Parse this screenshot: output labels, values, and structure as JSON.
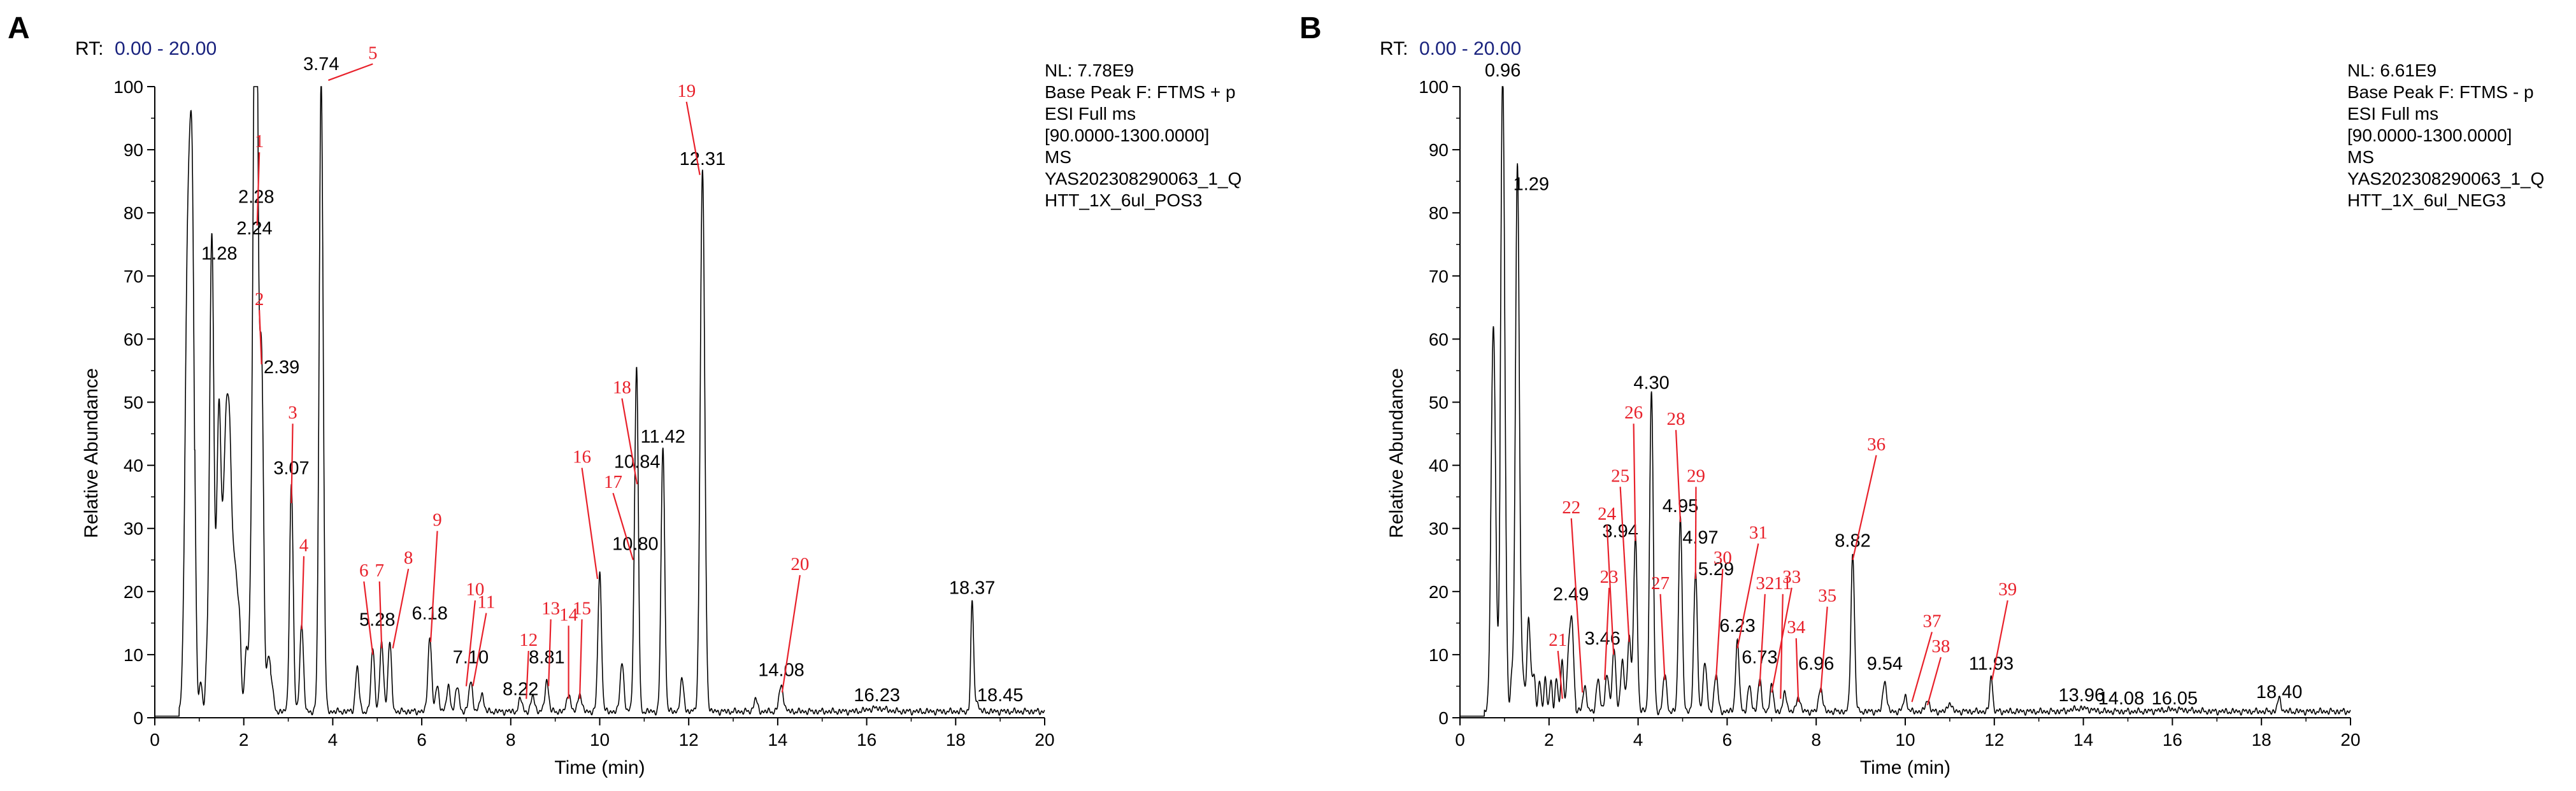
{
  "colors": {
    "trace": "#000000",
    "annot": "#e8202a",
    "rt_value": "#1a237e",
    "baseline": "#00a651"
  },
  "chart_data": [
    {
      "type": "line",
      "panel_label": "A",
      "rt_label": "RT:",
      "rt_range": "0.00 - 20.00",
      "xlabel": "Time (min)",
      "ylabel": "Relative Abundance",
      "xlim": [
        0,
        20
      ],
      "ylim": [
        0,
        100
      ],
      "xticks": [
        0,
        2,
        4,
        6,
        8,
        10,
        12,
        14,
        16,
        18,
        20
      ],
      "yticks": [
        0,
        10,
        20,
        30,
        40,
        50,
        60,
        70,
        80,
        90,
        100
      ],
      "info": [
        "NL: 7.78E9",
        "Base Peak F: FTMS + p",
        "ESI Full ms",
        "[90.0000-1300.0000]",
        "MS",
        "YAS202308290063_1_Q",
        "HTT_1X_6ul_POS3"
      ],
      "peaks": [
        {
          "rt": 0.74,
          "h": 70,
          "w": 0.06
        },
        {
          "rt": 0.84,
          "h": 72,
          "w": 0.05
        },
        {
          "rt": 1.28,
          "h": 71,
          "w": 0.05
        },
        {
          "rt": 1.45,
          "h": 46,
          "w": 0.05
        },
        {
          "rt": 1.6,
          "h": 42,
          "w": 0.05
        },
        {
          "rt": 1.7,
          "h": 33,
          "w": 0.05
        },
        {
          "rt": 1.84,
          "h": 19,
          "w": 0.06
        },
        {
          "rt": 2.1,
          "h": 8,
          "w": 0.05
        },
        {
          "rt": 2.24,
          "h": 74,
          "w": 0.05
        },
        {
          "rt": 2.28,
          "h": 77,
          "w": 0.04
        },
        {
          "rt": 2.39,
          "h": 54,
          "w": 0.05
        },
        {
          "rt": 2.6,
          "h": 6,
          "w": 0.05
        },
        {
          "rt": 3.07,
          "h": 36,
          "w": 0.04
        },
        {
          "rt": 3.3,
          "h": 14,
          "w": 0.04
        },
        {
          "rt": 3.74,
          "h": 100,
          "w": 0.045
        },
        {
          "rt": 4.55,
          "h": 7,
          "w": 0.04
        },
        {
          "rt": 4.9,
          "h": 10,
          "w": 0.04
        },
        {
          "rt": 5.1,
          "h": 11,
          "w": 0.04
        },
        {
          "rt": 5.28,
          "h": 11,
          "w": 0.04
        },
        {
          "rt": 6.18,
          "h": 12,
          "w": 0.04
        },
        {
          "rt": 6.35,
          "h": 4,
          "w": 0.04
        },
        {
          "rt": 6.6,
          "h": 4,
          "w": 0.04
        },
        {
          "rt": 6.8,
          "h": 4,
          "w": 0.04
        },
        {
          "rt": 7.1,
          "h": 5,
          "w": 0.04
        },
        {
          "rt": 7.35,
          "h": 3,
          "w": 0.04
        },
        {
          "rt": 8.22,
          "h": 2,
          "w": 0.04
        },
        {
          "rt": 8.5,
          "h": 2.5,
          "w": 0.04
        },
        {
          "rt": 8.81,
          "h": 5,
          "w": 0.04
        },
        {
          "rt": 9.3,
          "h": 3,
          "w": 0.04
        },
        {
          "rt": 9.55,
          "h": 3,
          "w": 0.04
        },
        {
          "rt": 10.0,
          "h": 22,
          "w": 0.04
        },
        {
          "rt": 10.5,
          "h": 8,
          "w": 0.04
        },
        {
          "rt": 10.8,
          "h": 25,
          "w": 0.04
        },
        {
          "rt": 10.84,
          "h": 37,
          "w": 0.035
        },
        {
          "rt": 11.42,
          "h": 42,
          "w": 0.04
        },
        {
          "rt": 11.85,
          "h": 5,
          "w": 0.04
        },
        {
          "rt": 12.31,
          "h": 86,
          "w": 0.05
        },
        {
          "rt": 13.5,
          "h": 2,
          "w": 0.04
        },
        {
          "rt": 14.08,
          "h": 4,
          "w": 0.05
        },
        {
          "rt": 16.23,
          "h": 0.5,
          "w": 0.2
        },
        {
          "rt": 18.37,
          "h": 17,
          "w": 0.03
        },
        {
          "rt": 18.45,
          "h": 2,
          "w": 0.05
        }
      ],
      "black_labels": [
        {
          "t": "3.74",
          "rt": 3.74,
          "v": 102
        },
        {
          "t": "2.28",
          "rt": 2.28,
          "v": 81
        },
        {
          "t": "2.24",
          "rt": 2.24,
          "v": 76
        },
        {
          "t": "1.28",
          "rt": 1.45,
          "v": 72
        },
        {
          "t": "2.39",
          "rt": 2.85,
          "v": 54
        },
        {
          "t": "3.07",
          "rt": 3.07,
          "v": 38
        },
        {
          "t": "5.28",
          "rt": 5.0,
          "v": 14
        },
        {
          "t": "6.18",
          "rt": 6.18,
          "v": 15
        },
        {
          "t": "7.10",
          "rt": 7.1,
          "v": 8
        },
        {
          "t": "8.22",
          "rt": 8.22,
          "v": 3
        },
        {
          "t": "8.81",
          "rt": 8.81,
          "v": 8
        },
        {
          "t": "10.84",
          "rt": 10.84,
          "v": 39
        },
        {
          "t": "11.42",
          "rt": 11.42,
          "v": 43
        },
        {
          "t": "10.80",
          "rt": 10.8,
          "v": 26
        },
        {
          "t": "12.31",
          "rt": 12.31,
          "v": 87
        },
        {
          "t": "14.08",
          "rt": 14.08,
          "v": 6
        },
        {
          "t": "16.23",
          "rt": 16.23,
          "v": 2
        },
        {
          "t": "18.37",
          "rt": 18.37,
          "v": 19
        },
        {
          "t": "18.45",
          "rt": 19.0,
          "v": 2
        }
      ],
      "red_labels": [
        {
          "t": "5",
          "tx": 4.9,
          "tv": 104,
          "rt": 3.9,
          "v": 101
        },
        {
          "t": "1",
          "tx": 2.35,
          "tv": 90,
          "rt": 2.3,
          "v": 78
        },
        {
          "t": "2",
          "tx": 2.35,
          "tv": 65,
          "rt": 2.4,
          "v": 56
        },
        {
          "t": "3",
          "tx": 3.1,
          "tv": 47,
          "rt": 3.07,
          "v": 34
        },
        {
          "t": "4",
          "tx": 3.35,
          "tv": 26,
          "rt": 3.3,
          "v": 14
        },
        {
          "t": "6",
          "tx": 4.7,
          "tv": 22,
          "rt": 4.9,
          "v": 10
        },
        {
          "t": "7",
          "tx": 5.05,
          "tv": 22,
          "rt": 5.1,
          "v": 11
        },
        {
          "t": "8",
          "tx": 5.7,
          "tv": 24,
          "rt": 5.35,
          "v": 11
        },
        {
          "t": "9",
          "tx": 6.35,
          "tv": 30,
          "rt": 6.2,
          "v": 12
        },
        {
          "t": "10",
          "tx": 7.2,
          "tv": 19,
          "rt": 7.0,
          "v": 5
        },
        {
          "t": "11",
          "tx": 7.45,
          "tv": 17,
          "rt": 7.15,
          "v": 5
        },
        {
          "t": "12",
          "tx": 8.4,
          "tv": 11,
          "rt": 8.35,
          "v": 3
        },
        {
          "t": "13",
          "tx": 8.9,
          "tv": 16,
          "rt": 8.85,
          "v": 5
        },
        {
          "t": "14",
          "tx": 9.3,
          "tv": 15,
          "rt": 9.3,
          "v": 3
        },
        {
          "t": "15",
          "tx": 9.6,
          "tv": 16,
          "rt": 9.55,
          "v": 3
        },
        {
          "t": "16",
          "tx": 9.6,
          "tv": 40,
          "rt": 9.95,
          "v": 22
        },
        {
          "t": "17",
          "tx": 10.3,
          "tv": 36,
          "rt": 10.75,
          "v": 25
        },
        {
          "t": "18",
          "tx": 10.5,
          "tv": 51,
          "rt": 10.84,
          "v": 37
        },
        {
          "t": "19",
          "tx": 11.95,
          "tv": 98,
          "rt": 12.25,
          "v": 86
        },
        {
          "t": "20",
          "tx": 14.5,
          "tv": 23,
          "rt": 14.1,
          "v": 4
        }
      ]
    },
    {
      "type": "line",
      "panel_label": "B",
      "rt_label": "RT:",
      "rt_range": "0.00 - 20.00",
      "xlabel": "Time (min)",
      "ylabel": "Relative Abundance",
      "xlim": [
        0,
        20
      ],
      "ylim": [
        0,
        100
      ],
      "xticks": [
        0,
        2,
        4,
        6,
        8,
        10,
        12,
        14,
        16,
        18,
        20
      ],
      "yticks": [
        0,
        10,
        20,
        30,
        40,
        50,
        60,
        70,
        80,
        90,
        100
      ],
      "info": [
        "NL: 6.61E9",
        "Base Peak F: FTMS - p",
        "ESI Full ms",
        "[90.0000-1300.0000]",
        "MS",
        "YAS202308290063_1_Q",
        "HTT_1X_6ul_NEG3"
      ],
      "peaks": [
        {
          "rt": 0.75,
          "h": 61,
          "w": 0.05
        },
        {
          "rt": 0.96,
          "h": 100,
          "w": 0.045
        },
        {
          "rt": 1.29,
          "h": 82,
          "w": 0.045
        },
        {
          "rt": 1.55,
          "h": 10,
          "w": 0.05
        },
        {
          "rt": 2.3,
          "h": 3,
          "w": 0.04
        },
        {
          "rt": 2.49,
          "h": 14,
          "w": 0.04
        },
        {
          "rt": 2.8,
          "h": 4,
          "w": 0.04
        },
        {
          "rt": 3.1,
          "h": 5,
          "w": 0.04
        },
        {
          "rt": 3.3,
          "h": 6,
          "w": 0.04
        },
        {
          "rt": 3.46,
          "h": 10,
          "w": 0.04
        },
        {
          "rt": 3.65,
          "h": 8,
          "w": 0.04
        },
        {
          "rt": 3.8,
          "h": 12,
          "w": 0.04
        },
        {
          "rt": 3.94,
          "h": 28,
          "w": 0.04
        },
        {
          "rt": 4.3,
          "h": 51,
          "w": 0.04
        },
        {
          "rt": 4.6,
          "h": 6,
          "w": 0.04
        },
        {
          "rt": 4.95,
          "h": 31,
          "w": 0.04
        },
        {
          "rt": 5.29,
          "h": 22,
          "w": 0.04
        },
        {
          "rt": 5.5,
          "h": 8,
          "w": 0.04
        },
        {
          "rt": 5.75,
          "h": 6,
          "w": 0.04
        },
        {
          "rt": 6.23,
          "h": 11,
          "w": 0.04
        },
        {
          "rt": 6.5,
          "h": 4,
          "w": 0.04
        },
        {
          "rt": 6.73,
          "h": 5,
          "w": 0.04
        },
        {
          "rt": 7.0,
          "h": 4,
          "w": 0.04
        },
        {
          "rt": 7.3,
          "h": 3,
          "w": 0.04
        },
        {
          "rt": 7.6,
          "h": 2.5,
          "w": 0.04
        },
        {
          "rt": 8.1,
          "h": 4,
          "w": 0.04
        },
        {
          "rt": 8.82,
          "h": 25,
          "w": 0.04
        },
        {
          "rt": 9.54,
          "h": 5,
          "w": 0.04
        },
        {
          "rt": 10.0,
          "h": 2.5,
          "w": 0.04
        },
        {
          "rt": 10.5,
          "h": 2,
          "w": 0.04
        },
        {
          "rt": 11.0,
          "h": 1.5,
          "w": 0.04
        },
        {
          "rt": 11.93,
          "h": 6,
          "w": 0.03
        },
        {
          "rt": 13.96,
          "h": 0.5,
          "w": 0.2
        },
        {
          "rt": 16.05,
          "h": 0.3,
          "w": 0.3
        },
        {
          "rt": 18.4,
          "h": 2,
          "w": 0.04
        }
      ],
      "black_labels": [
        {
          "t": "0.96",
          "rt": 0.96,
          "v": 101
        },
        {
          "t": "1.29",
          "rt": 1.6,
          "v": 83
        },
        {
          "t": "4.30",
          "rt": 4.3,
          "v": 51.5
        },
        {
          "t": "4.95",
          "rt": 4.95,
          "v": 32
        },
        {
          "t": "3.94",
          "rt": 3.6,
          "v": 28
        },
        {
          "t": "4.97",
          "rt": 5.4,
          "v": 27
        },
        {
          "t": "5.29",
          "rt": 5.75,
          "v": 22
        },
        {
          "t": "2.49",
          "rt": 2.49,
          "v": 18
        },
        {
          "t": "3.46",
          "rt": 3.2,
          "v": 11
        },
        {
          "t": "6.23",
          "rt": 6.23,
          "v": 13
        },
        {
          "t": "6.73",
          "rt": 6.73,
          "v": 8
        },
        {
          "t": "8.82",
          "rt": 8.82,
          "v": 26.5
        },
        {
          "t": "6.96",
          "rt": 8.0,
          "v": 7
        },
        {
          "t": "9.54",
          "rt": 9.54,
          "v": 7
        },
        {
          "t": "11.93",
          "rt": 11.93,
          "v": 7
        },
        {
          "t": "13.96",
          "rt": 13.96,
          "v": 2
        },
        {
          "t": "14.08",
          "rt": 14.85,
          "v": 1.5
        },
        {
          "t": "16.05",
          "rt": 16.05,
          "v": 1.5
        },
        {
          "t": "18.40",
          "rt": 18.4,
          "v": 2.5
        }
      ],
      "red_labels": [
        {
          "t": "21",
          "tx": 2.2,
          "tv": 11,
          "rt": 2.3,
          "v": 3
        },
        {
          "t": "22",
          "tx": 2.5,
          "tv": 32,
          "rt": 2.75,
          "v": 4
        },
        {
          "t": "23",
          "tx": 3.35,
          "tv": 21,
          "rt": 3.25,
          "v": 6
        },
        {
          "t": "24",
          "tx": 3.3,
          "tv": 31,
          "rt": 3.45,
          "v": 10
        },
        {
          "t": "25",
          "tx": 3.6,
          "tv": 37,
          "rt": 3.8,
          "v": 12
        },
        {
          "t": "26",
          "tx": 3.9,
          "tv": 47,
          "rt": 3.94,
          "v": 28
        },
        {
          "t": "27",
          "tx": 4.5,
          "tv": 20,
          "rt": 4.6,
          "v": 6
        },
        {
          "t": "28",
          "tx": 4.85,
          "tv": 46,
          "rt": 4.95,
          "v": 31
        },
        {
          "t": "29",
          "tx": 5.3,
          "tv": 37,
          "rt": 5.29,
          "v": 22
        },
        {
          "t": "30",
          "tx": 5.9,
          "tv": 24,
          "rt": 5.75,
          "v": 6
        },
        {
          "t": "31",
          "tx": 6.7,
          "tv": 28,
          "rt": 6.23,
          "v": 11
        },
        {
          "t": "32",
          "tx": 6.85,
          "tv": 20,
          "rt": 6.73,
          "v": 5
        },
        {
          "t": "33",
          "tx": 7.45,
          "tv": 21,
          "rt": 7.0,
          "v": 4
        },
        {
          "t": "11",
          "tx": 7.25,
          "tv": 20,
          "rt": 7.2,
          "v": 3
        },
        {
          "t": "34",
          "tx": 7.55,
          "tv": 13,
          "rt": 7.6,
          "v": 2.5
        },
        {
          "t": "35",
          "tx": 8.25,
          "tv": 18,
          "rt": 8.1,
          "v": 4
        },
        {
          "t": "36",
          "tx": 9.35,
          "tv": 42,
          "rt": 8.82,
          "v": 25
        },
        {
          "t": "37",
          "tx": 10.6,
          "tv": 14,
          "rt": 10.15,
          "v": 2.5
        },
        {
          "t": "38",
          "tx": 10.8,
          "tv": 10,
          "rt": 10.5,
          "v": 2
        },
        {
          "t": "39",
          "tx": 12.3,
          "tv": 19,
          "rt": 11.95,
          "v": 6
        }
      ]
    }
  ]
}
